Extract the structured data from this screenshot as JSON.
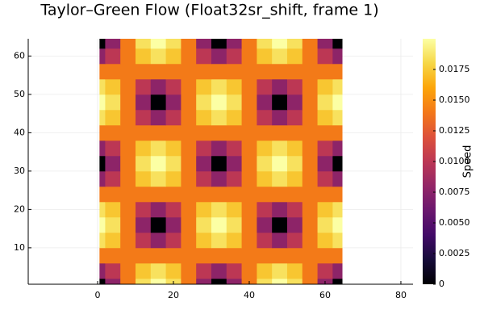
{
  "chart_data": {
    "type": "heatmap",
    "title": "Taylor–Green Flow (Float32sr_shift, frame 1)",
    "colorbar_label": "Speed",
    "x": [
      0,
      4,
      8,
      12,
      16,
      20,
      24,
      28,
      32,
      36,
      40,
      44,
      48,
      52,
      56,
      60,
      64
    ],
    "y": [
      0,
      4,
      8,
      12,
      16,
      20,
      24,
      28,
      32,
      36,
      40,
      44,
      48,
      52,
      56,
      60,
      64
    ],
    "z": [
      [
        0,
        0.0077,
        0.0141,
        0.0185,
        0.02,
        0.0185,
        0.0141,
        0.0077,
        0,
        0.0077,
        0.0141,
        0.0185,
        0.02,
        0.0185,
        0.0141,
        0.0077,
        0
      ],
      [
        0.0077,
        0.01,
        0.0141,
        0.0173,
        0.0185,
        0.0173,
        0.0141,
        0.01,
        0.0077,
        0.01,
        0.0141,
        0.0173,
        0.0185,
        0.0173,
        0.0141,
        0.01,
        0.0077
      ],
      [
        0.0141,
        0.0141,
        0.0141,
        0.0141,
        0.0141,
        0.0141,
        0.0141,
        0.0141,
        0.0141,
        0.0141,
        0.0141,
        0.0141,
        0.0141,
        0.0141,
        0.0141,
        0.0141,
        0.0141
      ],
      [
        0.0185,
        0.0173,
        0.0141,
        0.01,
        0.0077,
        0.01,
        0.0141,
        0.0173,
        0.0185,
        0.0173,
        0.0141,
        0.01,
        0.0077,
        0.01,
        0.0141,
        0.0173,
        0.0185
      ],
      [
        0.02,
        0.0185,
        0.0141,
        0.0077,
        0,
        0.0077,
        0.0141,
        0.0185,
        0.02,
        0.0185,
        0.0141,
        0.0077,
        0,
        0.0077,
        0.0141,
        0.0185,
        0.02
      ],
      [
        0.0185,
        0.0173,
        0.0141,
        0.01,
        0.0077,
        0.01,
        0.0141,
        0.0173,
        0.0185,
        0.0173,
        0.0141,
        0.01,
        0.0077,
        0.01,
        0.0141,
        0.0173,
        0.0185
      ],
      [
        0.0141,
        0.0141,
        0.0141,
        0.0141,
        0.0141,
        0.0141,
        0.0141,
        0.0141,
        0.0141,
        0.0141,
        0.0141,
        0.0141,
        0.0141,
        0.0141,
        0.0141,
        0.0141,
        0.0141
      ],
      [
        0.0077,
        0.01,
        0.0141,
        0.0173,
        0.0185,
        0.0173,
        0.0141,
        0.01,
        0.0077,
        0.01,
        0.0141,
        0.0173,
        0.0185,
        0.0173,
        0.0141,
        0.01,
        0.0077
      ],
      [
        0,
        0.0077,
        0.0141,
        0.0185,
        0.02,
        0.0185,
        0.0141,
        0.0077,
        0,
        0.0077,
        0.0141,
        0.0185,
        0.02,
        0.0185,
        0.0141,
        0.0077,
        0
      ],
      [
        0.0077,
        0.01,
        0.0141,
        0.0173,
        0.0185,
        0.0173,
        0.0141,
        0.01,
        0.0077,
        0.01,
        0.0141,
        0.0173,
        0.0185,
        0.0173,
        0.0141,
        0.01,
        0.0077
      ],
      [
        0.0141,
        0.0141,
        0.0141,
        0.0141,
        0.0141,
        0.0141,
        0.0141,
        0.0141,
        0.0141,
        0.0141,
        0.0141,
        0.0141,
        0.0141,
        0.0141,
        0.0141,
        0.0141,
        0.0141
      ],
      [
        0.0185,
        0.0173,
        0.0141,
        0.01,
        0.0077,
        0.01,
        0.0141,
        0.0173,
        0.0185,
        0.0173,
        0.0141,
        0.01,
        0.0077,
        0.01,
        0.0141,
        0.0173,
        0.0185
      ],
      [
        0.02,
        0.0185,
        0.0141,
        0.0077,
        0,
        0.0077,
        0.0141,
        0.0185,
        0.02,
        0.0185,
        0.0141,
        0.0077,
        0,
        0.0077,
        0.0141,
        0.0185,
        0.02
      ],
      [
        0.0185,
        0.0173,
        0.0141,
        0.01,
        0.0077,
        0.01,
        0.0141,
        0.0173,
        0.0185,
        0.0173,
        0.0141,
        0.01,
        0.0077,
        0.01,
        0.0141,
        0.0173,
        0.0185
      ],
      [
        0.0141,
        0.0141,
        0.0141,
        0.0141,
        0.0141,
        0.0141,
        0.0141,
        0.0141,
        0.0141,
        0.0141,
        0.0141,
        0.0141,
        0.0141,
        0.0141,
        0.0141,
        0.0141,
        0.0141
      ],
      [
        0.0077,
        0.01,
        0.0141,
        0.0173,
        0.0185,
        0.0173,
        0.0141,
        0.01,
        0.0077,
        0.01,
        0.0141,
        0.0173,
        0.0185,
        0.0173,
        0.0141,
        0.01,
        0.0077
      ],
      [
        0,
        0.0077,
        0.0141,
        0.0185,
        0.02,
        0.0185,
        0.0141,
        0.0077,
        0,
        0.0077,
        0.0141,
        0.0185,
        0.02,
        0.0185,
        0.0141,
        0.0077,
        0
      ]
    ],
    "xlim": [
      -18.3,
      83.2
    ],
    "ylim": [
      0.5,
      64.5
    ],
    "xticks": [
      0,
      20,
      40,
      60,
      80
    ],
    "yticks": [
      10,
      20,
      30,
      40,
      50,
      60
    ],
    "zlim": [
      0,
      0.02
    ],
    "zticks": [
      0,
      0.0025,
      {
        "value": 0.005,
        "label": "0.0050"
      },
      0.0075,
      {
        "value": 0.01,
        "label": "0.0100"
      },
      0.0125,
      {
        "value": 0.015,
        "label": "0.0150"
      },
      0.0175
    ],
    "colormap": [
      "#000004",
      "#160b39",
      "#420a68",
      "#6a176e",
      "#932667",
      "#bc3754",
      "#dd513a",
      "#f37819",
      "#fca50a",
      "#f6d746",
      "#fcffa4"
    ],
    "grid": true
  }
}
